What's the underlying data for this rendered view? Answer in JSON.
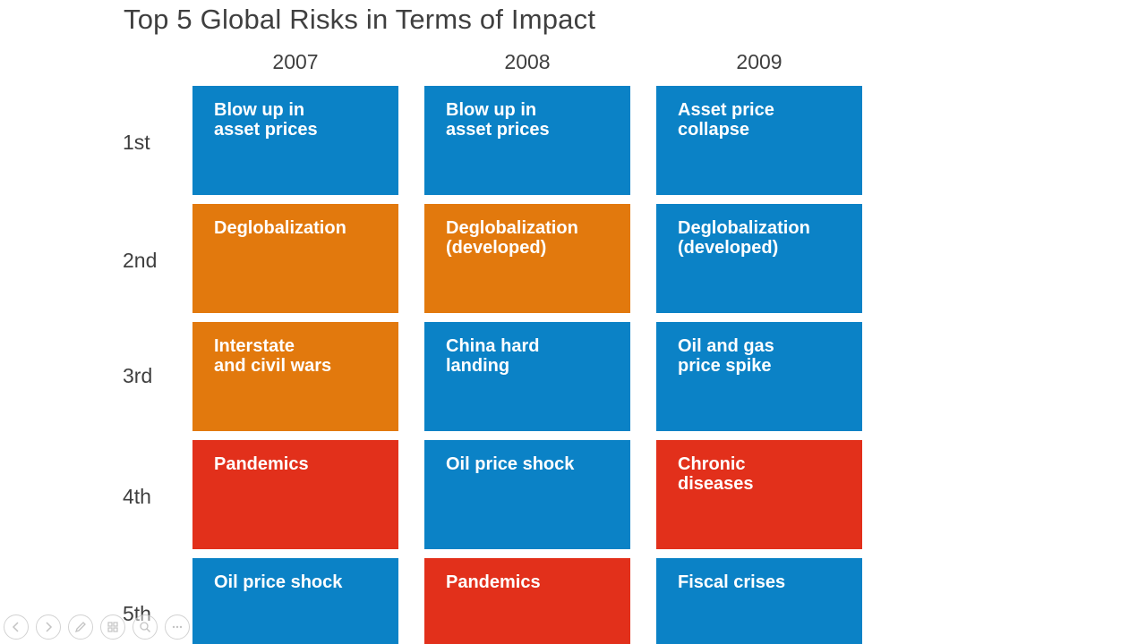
{
  "title": "Top 5 Global Risks in Terms of Impact",
  "years": [
    "2007",
    "2008",
    "2009"
  ],
  "ranks": [
    "1st",
    "2nd",
    "3rd",
    "4th",
    "5th"
  ],
  "colors": {
    "economic": "#0b82c6",
    "geopolitical": "#e2790d",
    "societal": "#e2301b"
  },
  "grid": [
    [
      {
        "label": "Blow up in\nasset prices",
        "color": "economic"
      },
      {
        "label": "Blow up in\nasset prices",
        "color": "economic"
      },
      {
        "label": "Asset price\ncollapse",
        "color": "economic"
      }
    ],
    [
      {
        "label": "Deglobalization",
        "color": "geopolitical"
      },
      {
        "label": "Deglobalization\n(developed)",
        "color": "geopolitical"
      },
      {
        "label": "Deglobalization\n(developed)",
        "color": "economic"
      }
    ],
    [
      {
        "label": "Interstate\nand civil wars",
        "color": "geopolitical"
      },
      {
        "label": "China hard\nlanding",
        "color": "economic"
      },
      {
        "label": "Oil and gas\nprice spike",
        "color": "economic"
      }
    ],
    [
      {
        "label": "Pandemics",
        "color": "societal"
      },
      {
        "label": "Oil price shock",
        "color": "economic"
      },
      {
        "label": "Chronic\ndiseases",
        "color": "societal"
      }
    ],
    [
      {
        "label": "Oil price shock",
        "color": "economic"
      },
      {
        "label": "Pandemics",
        "color": "societal"
      },
      {
        "label": "Fiscal crises",
        "color": "economic"
      }
    ]
  ],
  "controls": [
    {
      "icon": "previous-slide-icon"
    },
    {
      "icon": "next-slide-icon"
    },
    {
      "icon": "pen-icon"
    },
    {
      "icon": "see-all-slides-icon"
    },
    {
      "icon": "zoom-icon"
    },
    {
      "icon": "more-options-icon"
    }
  ]
}
